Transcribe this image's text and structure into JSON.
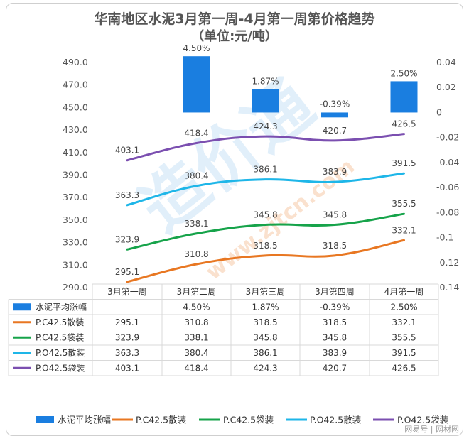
{
  "chart_data": {
    "type": "line",
    "title": "华南地区水泥3月第一周-4月第一周第价格趋势",
    "subtitle": "（单位:元/吨）",
    "categories": [
      "3月第一周",
      "3月第二周",
      "3月第三周",
      "3月第四周",
      "4月第一周"
    ],
    "y_left": {
      "ticks": [
        "490.0",
        "470.0",
        "450.0",
        "430.0",
        "410.0",
        "390.0",
        "370.0",
        "350.0",
        "330.0",
        "310.0",
        "290.0"
      ],
      "range": [
        290,
        490
      ]
    },
    "y_right": {
      "ticks": [
        "0.04",
        "0.02",
        "0",
        "-0.02",
        "-0.04",
        "-0.06",
        "-0.08",
        "-0.1",
        "-0.12",
        "-0.14"
      ],
      "range": [
        -0.14,
        0.04
      ]
    },
    "bar_series": {
      "name": "水泥平均涨幅",
      "color": "#1a7ee0",
      "values": [
        null,
        0.045,
        0.0187,
        -0.0039,
        0.025
      ],
      "labels": [
        "",
        "4.50%",
        "1.87%",
        "-0.39%",
        "2.50%"
      ]
    },
    "series": [
      {
        "name": "P.C42.5散装",
        "color": "#e87722",
        "values": [
          295.1,
          310.8,
          318.5,
          318.5,
          332.1
        ],
        "labels": [
          "295.1",
          "310.8",
          "318.5",
          "318.5",
          "332.1"
        ]
      },
      {
        "name": "P.C42.5袋装",
        "color": "#16a34a",
        "values": [
          323.9,
          338.1,
          345.8,
          345.8,
          355.5
        ],
        "labels": [
          "323.9",
          "338.1",
          "345.8",
          "345.8",
          "355.5"
        ]
      },
      {
        "name": "P.O42.5散装",
        "color": "#1eb6e8",
        "values": [
          363.3,
          380.4,
          386.1,
          383.9,
          391.5
        ],
        "labels": [
          "363.3",
          "380.4",
          "386.1",
          "383.9",
          "391.5"
        ]
      },
      {
        "name": "P.O42.5袋装",
        "color": "#7b4fb0",
        "values": [
          403.1,
          418.4,
          424.3,
          420.7,
          426.5
        ],
        "labels": [
          "403.1",
          "418.4",
          "424.3",
          "420.7",
          "426.5"
        ]
      }
    ],
    "legend_position": "bottom",
    "grid": false
  },
  "watermark": {
    "brand": "造价通",
    "site": "www.zjtcn.com"
  },
  "source": "网易号 | 网材网"
}
